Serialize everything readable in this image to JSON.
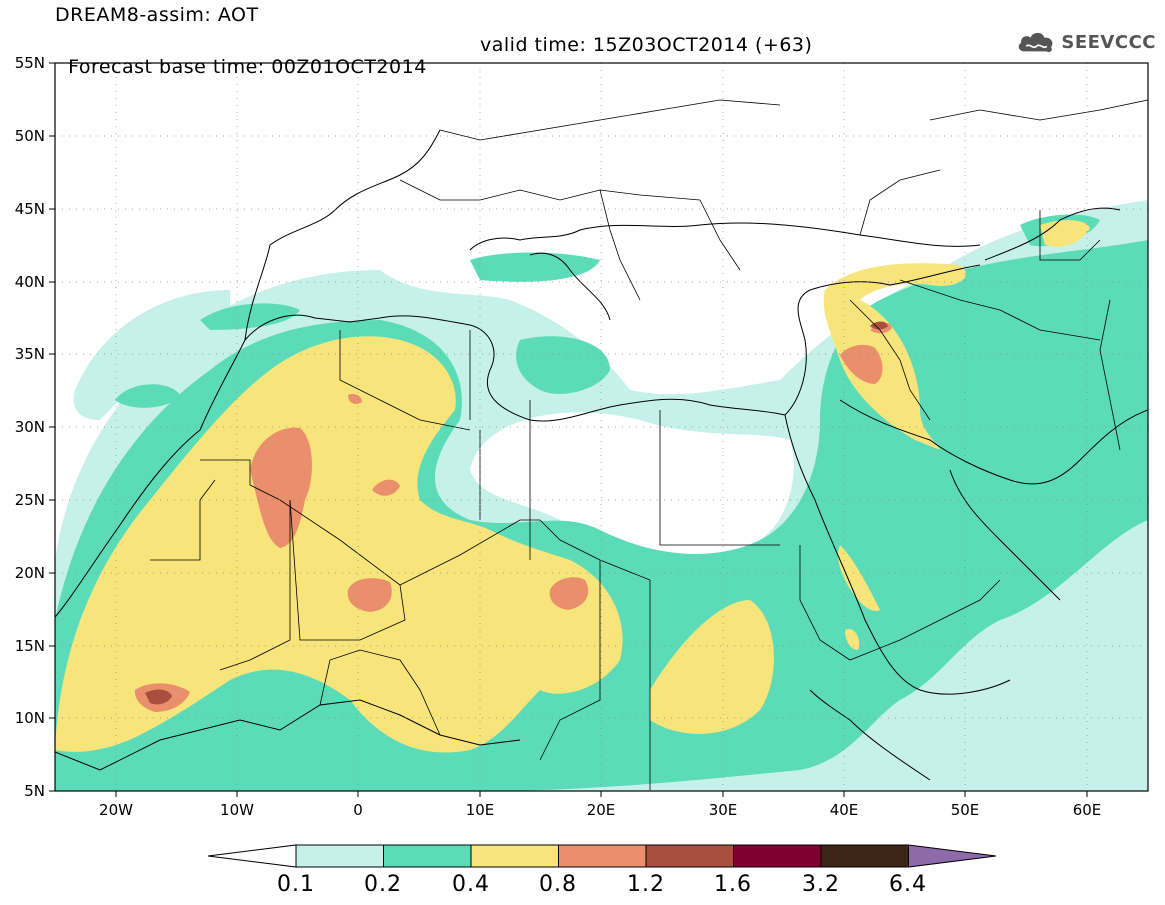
{
  "header": {
    "title": "DREAM8-assim: AOT",
    "base_time": "Forecast base time: 00Z01OCT2014",
    "valid_time": "valid time: 15Z03OCT2014 (+63)",
    "logo_text": "SEEVCCC"
  },
  "map": {
    "lon_range": [
      -25,
      65
    ],
    "lat_range": [
      5,
      55
    ],
    "lat_ticks": [
      "5N",
      "10N",
      "15N",
      "20N",
      "25N",
      "30N",
      "35N",
      "40N",
      "45N",
      "50N",
      "55N"
    ],
    "lon_ticks": [
      "20W",
      "10W",
      "0",
      "10E",
      "20E",
      "30E",
      "40E",
      "50E",
      "60E"
    ]
  },
  "colorbar": {
    "labels": [
      "0.1",
      "0.2",
      "0.4",
      "0.8",
      "1.2",
      "1.6",
      "3.2",
      "6.4"
    ],
    "colors": [
      "#ffffff",
      "#c6f0ea",
      "#5cdbb9",
      "#f7e47a",
      "#e98f6b",
      "#a84f3f",
      "#7f0030",
      "#3d2616",
      "#8e6aa8"
    ]
  }
}
